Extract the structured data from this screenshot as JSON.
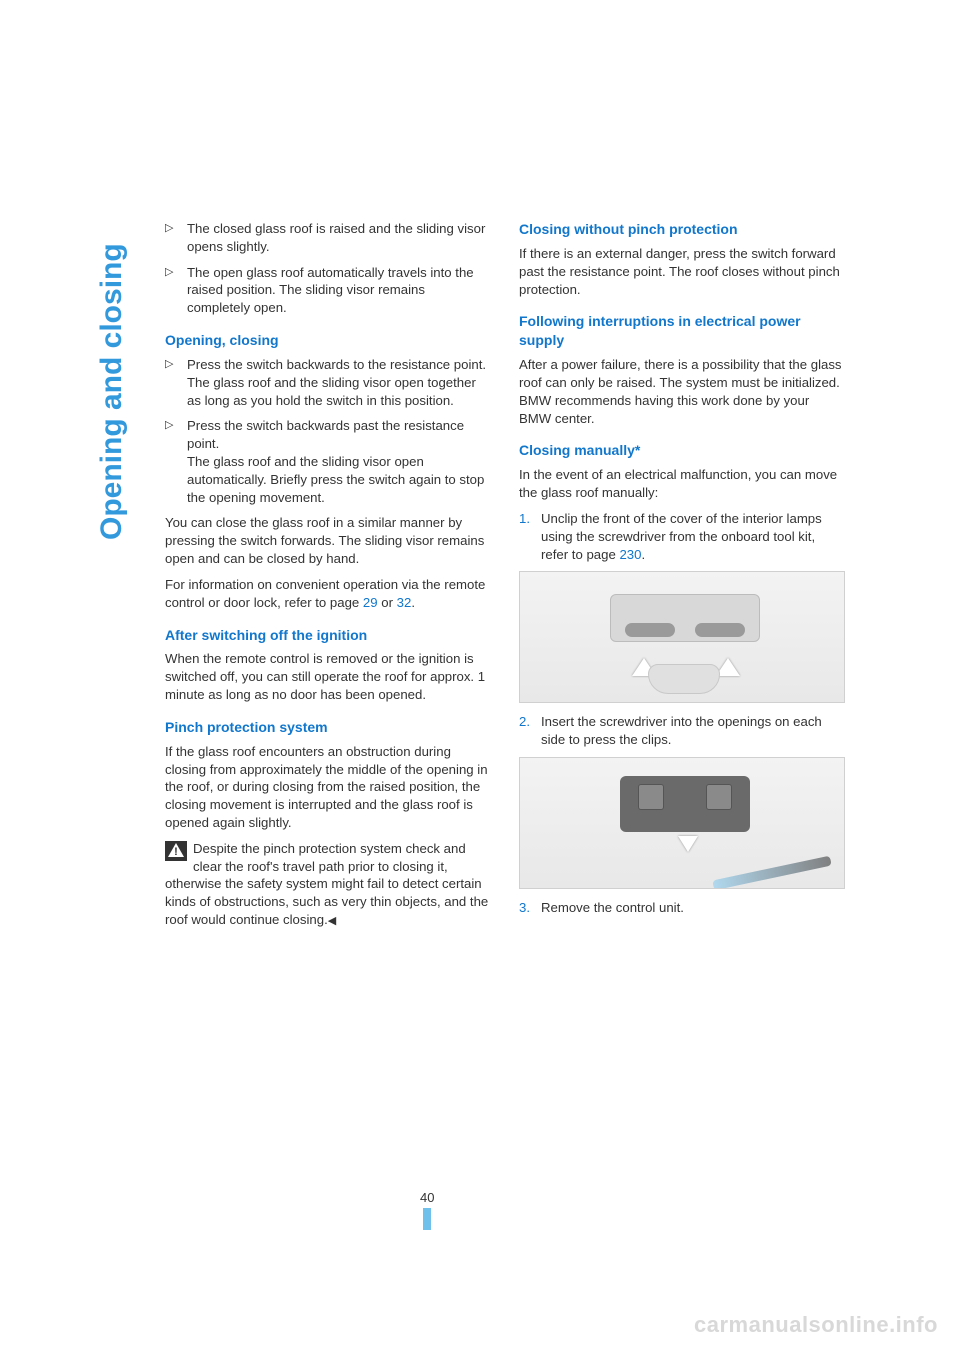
{
  "side_title": "Opening and closing",
  "page_number": "40",
  "watermark": "carmanualsonline.info",
  "left": {
    "intro_bullets": [
      "The closed glass roof is raised and the sliding visor opens slightly.",
      "The open glass roof automatically travels into the raised position. The sliding visor remains completely open."
    ],
    "h_opening": "Opening, closing",
    "opening_bullets": [
      {
        "main": "Press the switch backwards to the resistance point.",
        "sub": "The glass roof and the sliding visor open together as long as you hold the switch in this position."
      },
      {
        "main": "Press the switch backwards past the resistance point.",
        "sub": "The glass roof and the sliding visor open automatically. Briefly press the switch again to stop the opening movement."
      }
    ],
    "close_p1": "You can close the glass roof in a similar manner by pressing the switch forwards. The sliding visor remains open and can be closed by hand.",
    "close_p2a": "For information on convenient operation via the remote control or door lock, refer to page ",
    "link1": "29",
    "close_p2b": " or ",
    "link2": "32",
    "close_p2c": ".",
    "h_after": "After switching off the ignition",
    "after_p": "When the remote control is removed or the ignition is switched off, you can still operate the roof for approx. 1 minute as long as no door has been opened.",
    "h_pinch": "Pinch protection system",
    "pinch_p": "If the glass roof encounters an obstruction during closing from approximately the middle of the opening in the roof, or during closing from the raised position, the closing movement is interrupted and the glass roof is opened again slightly.",
    "warn_p": "Despite the pinch protection system check and clear the roof's travel path prior to closing it, otherwise the safety system might fail to detect certain kinds of obstructions, such as very thin objects, and the roof would continue closing."
  },
  "right": {
    "h_closing_wo": "Closing without pinch protection",
    "closing_wo_p": "If there is an external danger, press the switch forward past the resistance point. The roof closes without pinch protection.",
    "h_following": "Following interruptions in electrical power supply",
    "following_p": "After a power failure, there is a possibility that the glass roof can only be raised. The system must be initialized. BMW recommends having this work done by your BMW center.",
    "h_manual": "Closing manually*",
    "manual_p": "In the event of an electrical malfunction, you can move the glass roof manually:",
    "step1a": "Unclip the front of the cover of the interior lamps using the screwdriver from the onboard tool kit, refer to page ",
    "step1_link": "230",
    "step1b": ".",
    "step2": "Insert the screwdriver into the openings on each side to press the clips.",
    "step3": "Remove the control unit."
  }
}
